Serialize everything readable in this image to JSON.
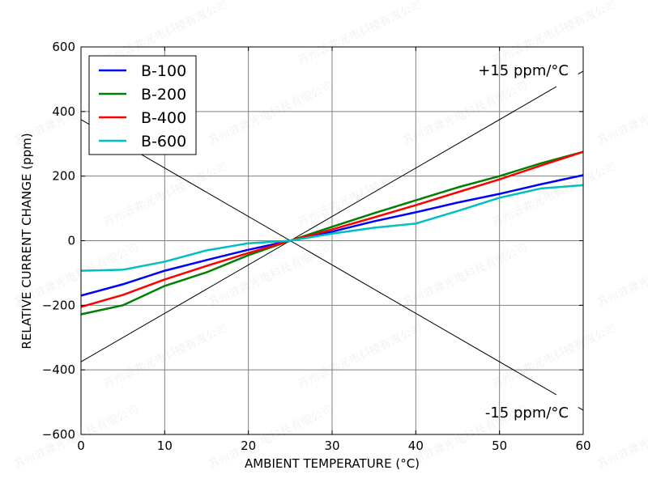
{
  "chart_data": {
    "type": "line",
    "title": "",
    "xlabel": "AMBIENT TEMPERATURE (°C)",
    "ylabel": "RELATIVE CURRENT CHANGE (ppm)",
    "xlim": [
      0,
      60
    ],
    "ylim": [
      -600,
      600
    ],
    "xticks": [
      0,
      10,
      20,
      30,
      40,
      50,
      60
    ],
    "yticks": [
      -600,
      -400,
      -200,
      0,
      200,
      400,
      600
    ],
    "ytick_labels": [
      "−600",
      "−400",
      "−200",
      "0",
      "200",
      "400",
      "600"
    ],
    "grid": true,
    "legend_position": "top-left",
    "x": [
      0,
      5,
      10,
      15,
      20,
      25,
      30,
      35,
      40,
      45,
      50,
      55,
      60
    ],
    "series": [
      {
        "name": "B-100",
        "color": "#0000ff",
        "values": [
          -170,
          -135,
          -93,
          -60,
          -28,
          0,
          28,
          60,
          88,
          118,
          145,
          175,
          203
        ]
      },
      {
        "name": "B-200",
        "color": "#008000",
        "values": [
          -228,
          -200,
          -140,
          -98,
          -45,
          0,
          43,
          85,
          125,
          165,
          200,
          240,
          275
        ]
      },
      {
        "name": "B-400",
        "color": "#ff0000",
        "values": [
          -205,
          -168,
          -120,
          -78,
          -38,
          0,
          35,
          72,
          110,
          150,
          190,
          233,
          275
        ]
      },
      {
        "name": "B-600",
        "color": "#00bfbf",
        "values": [
          -93,
          -90,
          -65,
          -30,
          -8,
          0,
          22,
          40,
          53,
          92,
          133,
          162,
          172
        ]
      }
    ],
    "reference_lines": [
      {
        "label": "+15 ppm/°C",
        "slope": 15,
        "x0": 25,
        "color": "#000000"
      },
      {
        "label": "-15 ppm/°C",
        "slope": -15,
        "x0": 25,
        "color": "#000000"
      }
    ]
  },
  "watermark": "苏州波弗光电科技有限公司"
}
